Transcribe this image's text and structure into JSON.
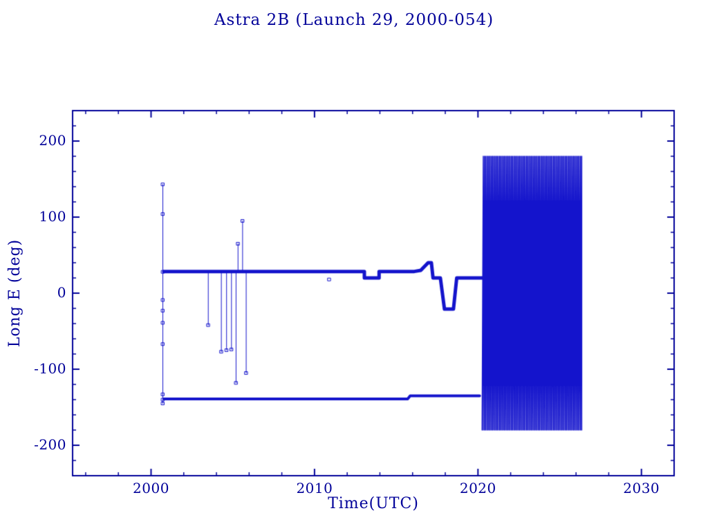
{
  "chart_data": {
    "type": "line",
    "title": "Astra 2B (Launch 29, 2000-054)",
    "xlabel": "Time(UTC)",
    "ylabel": "Long E (deg)",
    "xlim": [
      1995.2,
      2032.0
    ],
    "ylim": [
      -240,
      240
    ],
    "xticks": [
      2000,
      2010,
      2020,
      2030
    ],
    "yticks": [
      -200,
      -100,
      0,
      100,
      200
    ],
    "x_minor_step": 2,
    "y_minor_step": 20,
    "grid": false,
    "legend": false,
    "colors": {
      "data": "#1414cc",
      "frame": "#000099",
      "text": "#000099",
      "background": "#ffffff"
    },
    "series": [
      {
        "name": "east-station-line",
        "type": "polyline",
        "width": 5,
        "points": [
          [
            2000.78,
            28.5
          ],
          [
            2013.05,
            28.5
          ],
          [
            2013.05,
            20
          ],
          [
            2013.95,
            20
          ],
          [
            2013.95,
            28.5
          ],
          [
            2016.1,
            28.5
          ],
          [
            2016.5,
            30
          ],
          [
            2016.95,
            40
          ],
          [
            2017.15,
            40
          ],
          [
            2017.25,
            20
          ],
          [
            2017.7,
            20
          ],
          [
            2017.95,
            -21
          ],
          [
            2018.5,
            -21
          ],
          [
            2018.7,
            20
          ],
          [
            2020.3,
            20
          ]
        ]
      },
      {
        "name": "west-station-line",
        "type": "polyline",
        "width": 4,
        "points": [
          [
            2000.8,
            -139
          ],
          [
            2015.7,
            -139
          ],
          [
            2015.85,
            -135
          ],
          [
            2020.1,
            -135
          ]
        ]
      },
      {
        "name": "launch-dispersion",
        "type": "scatter_line",
        "x": 2000.72,
        "line_width": 1,
        "marker_size": 4,
        "values": [
          143,
          104,
          28,
          -9,
          -23,
          -39,
          -67,
          -133,
          -140,
          -145
        ]
      },
      {
        "name": "maneuver-spikes",
        "type": "spikes",
        "base": 28.5,
        "line_width": 1,
        "marker_size": 4,
        "spikes": [
          [
            2003.5,
            -42
          ],
          [
            2004.3,
            -77
          ],
          [
            2004.62,
            -75
          ],
          [
            2004.92,
            -74
          ],
          [
            2005.2,
            -118
          ],
          [
            2005.32,
            65
          ],
          [
            2005.6,
            95
          ],
          [
            2005.82,
            -105
          ]
        ]
      },
      {
        "name": "stray-point",
        "type": "scatter",
        "marker_size": 4,
        "points": [
          [
            2010.9,
            18
          ]
        ]
      },
      {
        "name": "post-2020-drift",
        "type": "drift",
        "start": 2020.25,
        "end": 2026.35,
        "min": -180,
        "max": 180,
        "cycles": 85,
        "line_width": 1.4
      }
    ]
  }
}
